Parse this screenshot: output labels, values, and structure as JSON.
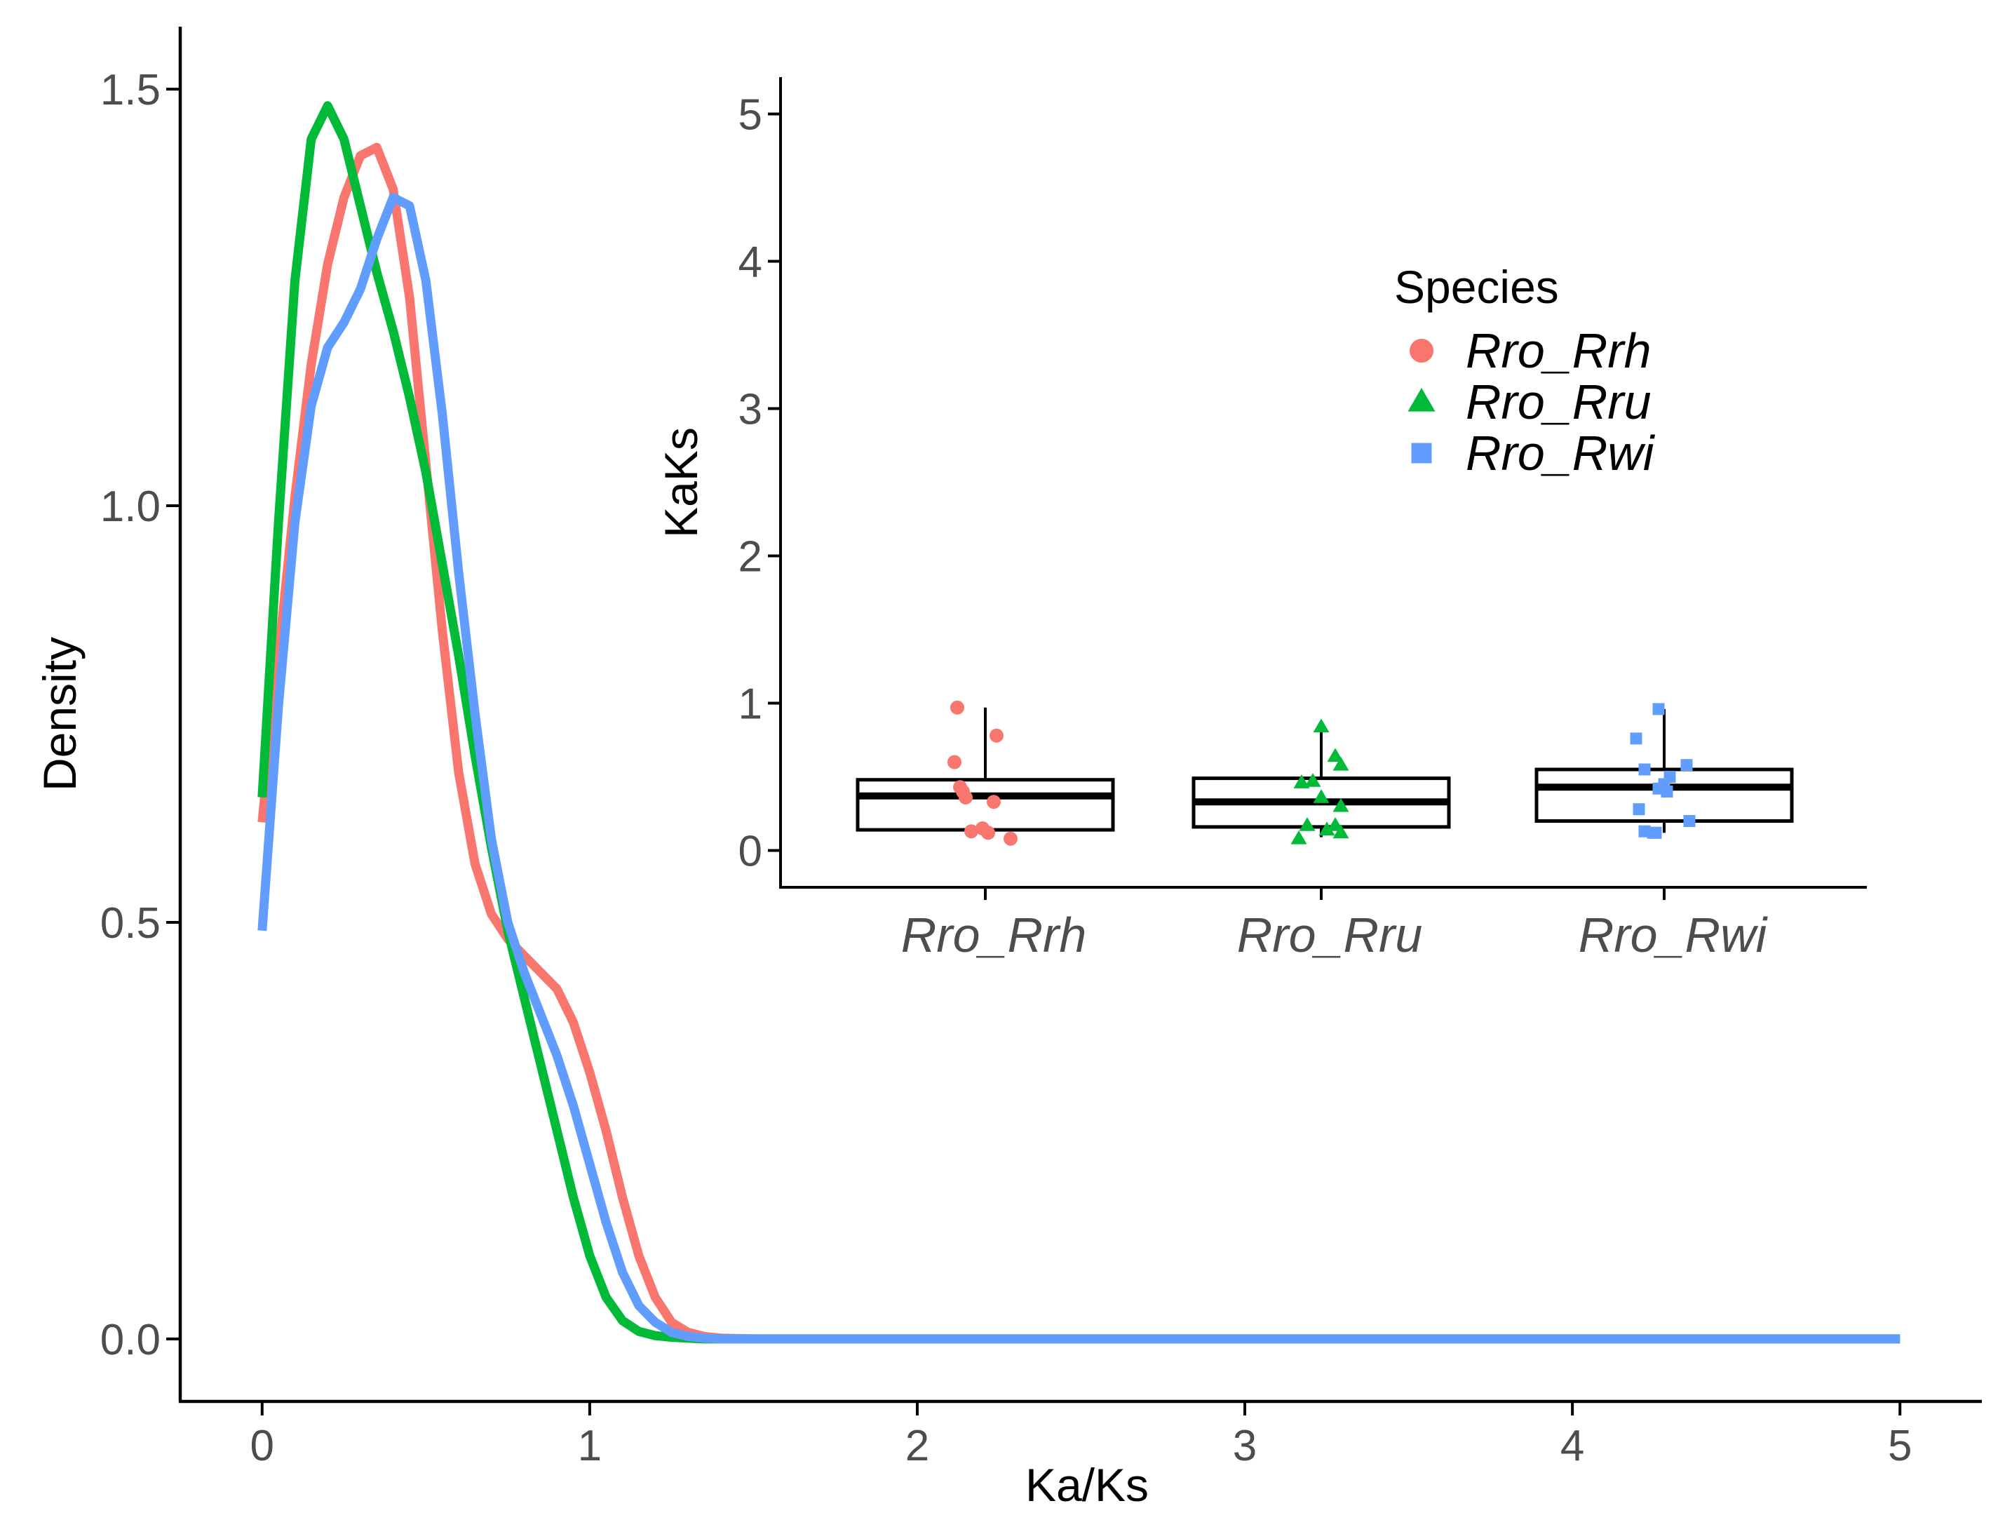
{
  "colors": {
    "Rro_Rrh": "#F8766D",
    "Rro_Rru": "#00BA38",
    "Rro_Rwi": "#619CFF",
    "axis": "#000000",
    "tick_text": "#4d4d4d",
    "background": "#ffffff"
  },
  "chart_data": [
    {
      "id": "density",
      "type": "line",
      "title": "",
      "xlabel": "Ka/Ks",
      "ylabel": "Density",
      "xlim": [
        -0.25,
        5.25
      ],
      "ylim": [
        -0.075,
        1.575
      ],
      "x_ticks": [
        0,
        1,
        2,
        3,
        4,
        5
      ],
      "x_tick_labels": [
        "0",
        "1",
        "2",
        "3",
        "4",
        "5"
      ],
      "y_ticks": [
        0,
        0.5,
        1,
        1.5
      ],
      "y_tick_labels": [
        "0.0",
        "0.5",
        "1.0",
        "1.5"
      ],
      "grid": false,
      "series": [
        {
          "name": "Rro_Rrh",
          "color_key": "Rro_Rrh",
          "x": [
            0,
            0.05,
            0.1,
            0.15,
            0.2,
            0.25,
            0.3,
            0.35,
            0.4,
            0.45,
            0.5,
            0.55,
            0.6,
            0.65,
            0.7,
            0.75,
            0.8,
            0.85,
            0.9,
            0.95,
            1.0,
            1.05,
            1.1,
            1.15,
            1.2,
            1.25,
            1.3,
            1.35,
            1.4,
            1.5,
            2.0,
            3.0,
            4.0,
            5.0
          ],
          "y": [
            0.62,
            0.82,
            1.01,
            1.17,
            1.29,
            1.37,
            1.42,
            1.43,
            1.38,
            1.25,
            1.05,
            0.85,
            0.68,
            0.57,
            0.51,
            0.48,
            0.46,
            0.44,
            0.42,
            0.38,
            0.32,
            0.25,
            0.17,
            0.1,
            0.05,
            0.02,
            0.008,
            0.003,
            0.001,
            0.0,
            0.0,
            0.0,
            0.0,
            0.0
          ]
        },
        {
          "name": "Rro_Rru",
          "color_key": "Rro_Rru",
          "x": [
            0,
            0.05,
            0.1,
            0.15,
            0.2,
            0.25,
            0.3,
            0.35,
            0.4,
            0.45,
            0.5,
            0.55,
            0.6,
            0.65,
            0.7,
            0.75,
            0.8,
            0.85,
            0.9,
            0.95,
            1.0,
            1.05,
            1.1,
            1.15,
            1.2,
            1.25,
            1.3,
            1.35,
            1.4,
            1.5,
            2.0,
            3.0,
            4.0,
            5.0
          ],
          "y": [
            0.65,
            0.98,
            1.27,
            1.44,
            1.48,
            1.44,
            1.36,
            1.28,
            1.21,
            1.13,
            1.04,
            0.93,
            0.82,
            0.7,
            0.59,
            0.49,
            0.41,
            0.33,
            0.25,
            0.17,
            0.1,
            0.05,
            0.022,
            0.009,
            0.004,
            0.002,
            0.001,
            0.0,
            0.0,
            0.0,
            0.0,
            0.0,
            0.0,
            0.0
          ]
        },
        {
          "name": "Rro_Rwi",
          "color_key": "Rro_Rwi",
          "x": [
            0,
            0.05,
            0.1,
            0.15,
            0.2,
            0.25,
            0.3,
            0.35,
            0.4,
            0.45,
            0.5,
            0.55,
            0.6,
            0.65,
            0.7,
            0.75,
            0.8,
            0.85,
            0.9,
            0.95,
            1.0,
            1.05,
            1.1,
            1.15,
            1.2,
            1.25,
            1.3,
            1.35,
            1.4,
            1.5,
            2.0,
            3.0,
            4.0,
            5.0
          ],
          "y": [
            0.49,
            0.76,
            0.98,
            1.12,
            1.19,
            1.22,
            1.26,
            1.32,
            1.37,
            1.36,
            1.27,
            1.11,
            0.92,
            0.75,
            0.6,
            0.5,
            0.44,
            0.39,
            0.34,
            0.28,
            0.21,
            0.14,
            0.08,
            0.04,
            0.02,
            0.008,
            0.003,
            0.001,
            0.0,
            0.0,
            0.0,
            0.0,
            0.0,
            0.0
          ]
        }
      ]
    },
    {
      "id": "boxplot-inset",
      "type": "box",
      "title": "",
      "xlabel": "",
      "ylabel": "KaKs",
      "ylim": [
        -0.25,
        5.25
      ],
      "y_ticks": [
        0,
        1,
        2,
        3,
        4,
        5
      ],
      "y_tick_labels": [
        "0",
        "1",
        "2",
        "3",
        "4",
        "5"
      ],
      "grid": false,
      "categories": [
        "Rro_Rrh",
        "Rro_Rru",
        "Rro_Rwi"
      ],
      "boxes": [
        {
          "category": "Rro_Rrh",
          "q1": 0.14,
          "median": 0.37,
          "q3": 0.48,
          "whisker_low": 0.1,
          "whisker_high": 0.97
        },
        {
          "category": "Rro_Rru",
          "q1": 0.16,
          "median": 0.33,
          "q3": 0.49,
          "whisker_low": 0.09,
          "whisker_high": 0.84
        },
        {
          "category": "Rro_Rwi",
          "q1": 0.2,
          "median": 0.43,
          "q3": 0.55,
          "whisker_low": 0.12,
          "whisker_high": 0.96
        }
      ],
      "points": [
        {
          "category": "Rro_Rrh",
          "shape": "circle",
          "jitter": [
            -0.1,
            0.04,
            -0.11,
            -0.09,
            -0.08,
            -0.07,
            0.03,
            -0.05,
            -0.01,
            0.01,
            0.09
          ],
          "values": [
            0.97,
            0.78,
            0.6,
            0.43,
            0.4,
            0.36,
            0.33,
            0.13,
            0.15,
            0.12,
            0.08
          ]
        },
        {
          "category": "Rro_Rru",
          "shape": "triangle",
          "jitter": [
            0.0,
            0.05,
            0.07,
            -0.07,
            -0.03,
            0.07,
            0.0,
            0.05,
            0.07,
            -0.05,
            0.02,
            -0.08
          ],
          "values": [
            0.84,
            0.64,
            0.58,
            0.46,
            0.47,
            0.3,
            0.36,
            0.17,
            0.12,
            0.17,
            0.14,
            0.08
          ]
        },
        {
          "category": "Rro_Rwi",
          "shape": "square",
          "jitter": [
            -0.02,
            -0.1,
            0.08,
            0.02,
            -0.07,
            0.0,
            0.01,
            -0.02,
            -0.09,
            0.09,
            -0.07,
            -0.04,
            -0.03
          ],
          "values": [
            0.96,
            0.76,
            0.58,
            0.5,
            0.55,
            0.45,
            0.4,
            0.42,
            0.28,
            0.2,
            0.13,
            0.12,
            0.12
          ]
        }
      ]
    }
  ],
  "legend": {
    "title": "Species",
    "placement": "inset-top-right",
    "items": [
      {
        "label": "Rro_Rrh",
        "shape": "circle",
        "color_key": "Rro_Rrh"
      },
      {
        "label": "Rro_Rru",
        "shape": "triangle",
        "color_key": "Rro_Rru"
      },
      {
        "label": "Rro_Rwi",
        "shape": "square",
        "color_key": "Rro_Rwi"
      }
    ]
  }
}
